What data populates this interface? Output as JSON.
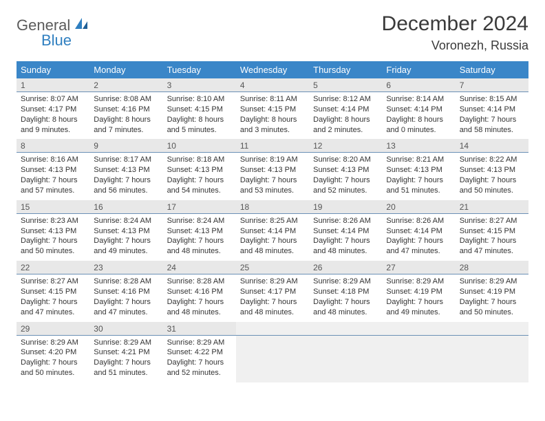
{
  "brand": {
    "text1": "General",
    "text2": "Blue",
    "color1": "#5b5b5b",
    "color2": "#2f7fc0"
  },
  "title": "December 2024",
  "location": "Voronezh, Russia",
  "header_bg": "#3a86c8",
  "header_fg": "#ffffff",
  "daynum_bg": "#e8e8e8",
  "rule_color": "#6a8fb5",
  "day_labels": [
    "Sunday",
    "Monday",
    "Tuesday",
    "Wednesday",
    "Thursday",
    "Friday",
    "Saturday"
  ],
  "weeks": [
    [
      {
        "n": "1",
        "sunrise": "8:07 AM",
        "sunset": "4:17 PM",
        "dl": "8 hours and 9 minutes."
      },
      {
        "n": "2",
        "sunrise": "8:08 AM",
        "sunset": "4:16 PM",
        "dl": "8 hours and 7 minutes."
      },
      {
        "n": "3",
        "sunrise": "8:10 AM",
        "sunset": "4:15 PM",
        "dl": "8 hours and 5 minutes."
      },
      {
        "n": "4",
        "sunrise": "8:11 AM",
        "sunset": "4:15 PM",
        "dl": "8 hours and 3 minutes."
      },
      {
        "n": "5",
        "sunrise": "8:12 AM",
        "sunset": "4:14 PM",
        "dl": "8 hours and 2 minutes."
      },
      {
        "n": "6",
        "sunrise": "8:14 AM",
        "sunset": "4:14 PM",
        "dl": "8 hours and 0 minutes."
      },
      {
        "n": "7",
        "sunrise": "8:15 AM",
        "sunset": "4:14 PM",
        "dl": "7 hours and 58 minutes."
      }
    ],
    [
      {
        "n": "8",
        "sunrise": "8:16 AM",
        "sunset": "4:13 PM",
        "dl": "7 hours and 57 minutes."
      },
      {
        "n": "9",
        "sunrise": "8:17 AM",
        "sunset": "4:13 PM",
        "dl": "7 hours and 56 minutes."
      },
      {
        "n": "10",
        "sunrise": "8:18 AM",
        "sunset": "4:13 PM",
        "dl": "7 hours and 54 minutes."
      },
      {
        "n": "11",
        "sunrise": "8:19 AM",
        "sunset": "4:13 PM",
        "dl": "7 hours and 53 minutes."
      },
      {
        "n": "12",
        "sunrise": "8:20 AM",
        "sunset": "4:13 PM",
        "dl": "7 hours and 52 minutes."
      },
      {
        "n": "13",
        "sunrise": "8:21 AM",
        "sunset": "4:13 PM",
        "dl": "7 hours and 51 minutes."
      },
      {
        "n": "14",
        "sunrise": "8:22 AM",
        "sunset": "4:13 PM",
        "dl": "7 hours and 50 minutes."
      }
    ],
    [
      {
        "n": "15",
        "sunrise": "8:23 AM",
        "sunset": "4:13 PM",
        "dl": "7 hours and 50 minutes."
      },
      {
        "n": "16",
        "sunrise": "8:24 AM",
        "sunset": "4:13 PM",
        "dl": "7 hours and 49 minutes."
      },
      {
        "n": "17",
        "sunrise": "8:24 AM",
        "sunset": "4:13 PM",
        "dl": "7 hours and 48 minutes."
      },
      {
        "n": "18",
        "sunrise": "8:25 AM",
        "sunset": "4:14 PM",
        "dl": "7 hours and 48 minutes."
      },
      {
        "n": "19",
        "sunrise": "8:26 AM",
        "sunset": "4:14 PM",
        "dl": "7 hours and 48 minutes."
      },
      {
        "n": "20",
        "sunrise": "8:26 AM",
        "sunset": "4:14 PM",
        "dl": "7 hours and 47 minutes."
      },
      {
        "n": "21",
        "sunrise": "8:27 AM",
        "sunset": "4:15 PM",
        "dl": "7 hours and 47 minutes."
      }
    ],
    [
      {
        "n": "22",
        "sunrise": "8:27 AM",
        "sunset": "4:15 PM",
        "dl": "7 hours and 47 minutes."
      },
      {
        "n": "23",
        "sunrise": "8:28 AM",
        "sunset": "4:16 PM",
        "dl": "7 hours and 47 minutes."
      },
      {
        "n": "24",
        "sunrise": "8:28 AM",
        "sunset": "4:16 PM",
        "dl": "7 hours and 48 minutes."
      },
      {
        "n": "25",
        "sunrise": "8:29 AM",
        "sunset": "4:17 PM",
        "dl": "7 hours and 48 minutes."
      },
      {
        "n": "26",
        "sunrise": "8:29 AM",
        "sunset": "4:18 PM",
        "dl": "7 hours and 48 minutes."
      },
      {
        "n": "27",
        "sunrise": "8:29 AM",
        "sunset": "4:19 PM",
        "dl": "7 hours and 49 minutes."
      },
      {
        "n": "28",
        "sunrise": "8:29 AM",
        "sunset": "4:19 PM",
        "dl": "7 hours and 50 minutes."
      }
    ],
    [
      {
        "n": "29",
        "sunrise": "8:29 AM",
        "sunset": "4:20 PM",
        "dl": "7 hours and 50 minutes."
      },
      {
        "n": "30",
        "sunrise": "8:29 AM",
        "sunset": "4:21 PM",
        "dl": "7 hours and 51 minutes."
      },
      {
        "n": "31",
        "sunrise": "8:29 AM",
        "sunset": "4:22 PM",
        "dl": "7 hours and 52 minutes."
      },
      null,
      null,
      null,
      null
    ]
  ],
  "labels": {
    "sunrise": "Sunrise:",
    "sunset": "Sunset:",
    "daylight": "Daylight:"
  }
}
